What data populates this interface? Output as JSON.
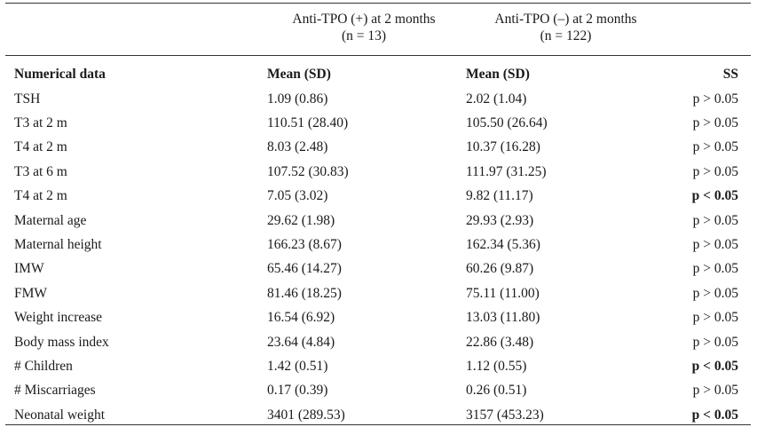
{
  "groups": [
    {
      "label": "Anti-TPO (+) at 2 months",
      "n": "(n = 13)"
    },
    {
      "label": "Anti-TPO (–) at 2 months",
      "n": "(n = 122)"
    }
  ],
  "columns": [
    "Numerical data",
    "Mean (SD)",
    "Mean (SD)",
    "SS"
  ],
  "rows": [
    {
      "label": "TSH",
      "pos": "1.09 (0.86)",
      "neg": "2.02 (1.04)",
      "ss": "p > 0.05",
      "significant": false
    },
    {
      "label": "T3 at 2 m",
      "pos": "110.51 (28.40)",
      "neg": "105.50 (26.64)",
      "ss": "p > 0.05",
      "significant": false
    },
    {
      "label": "T4 at 2 m",
      "pos": "8.03 (2.48)",
      "neg": "10.37 (16.28)",
      "ss": "p > 0.05",
      "significant": false
    },
    {
      "label": "T3 at 6 m",
      "pos": "107.52 (30.83)",
      "neg": "111.97 (31.25)",
      "ss": "p > 0.05",
      "significant": false
    },
    {
      "label": "T4 at 2 m",
      "pos": "7.05 (3.02)",
      "neg": "9.82 (11.17)",
      "ss": "p < 0.05",
      "significant": true
    },
    {
      "label": "Maternal age",
      "pos": "29.62 (1.98)",
      "neg": "29.93 (2.93)",
      "ss": "p > 0.05",
      "significant": false
    },
    {
      "label": "Maternal height",
      "pos": "166.23 (8.67)",
      "neg": "162.34 (5.36)",
      "ss": "p > 0.05",
      "significant": false
    },
    {
      "label": "IMW",
      "pos": "65.46 (14.27)",
      "neg": "60.26 (9.87)",
      "ss": "p > 0.05",
      "significant": false
    },
    {
      "label": "FMW",
      "pos": "81.46 (18.25)",
      "neg": "75.11 (11.00)",
      "ss": "p > 0.05",
      "significant": false
    },
    {
      "label": "Weight increase",
      "pos": "16.54 (6.92)",
      "neg": "13.03 (11.80)",
      "ss": "p > 0.05",
      "significant": false
    },
    {
      "label": "Body mass index",
      "pos": "23.64 (4.84)",
      "neg": "22.86 (3.48)",
      "ss": "p > 0.05",
      "significant": false
    },
    {
      "label": "# Children",
      "pos": "1.42 (0.51)",
      "neg": "1.12 (0.55)",
      "ss": "p < 0.05",
      "significant": true
    },
    {
      "label": "# Miscarriages",
      "pos": "0.17 (0.39)",
      "neg": "0.26 (0.51)",
      "ss": "p > 0.05",
      "significant": false
    },
    {
      "label": "Neonatal weight",
      "pos": "3401 (289.53)",
      "neg": "3157 (453.23)",
      "ss": "p < 0.05",
      "significant": true
    }
  ]
}
